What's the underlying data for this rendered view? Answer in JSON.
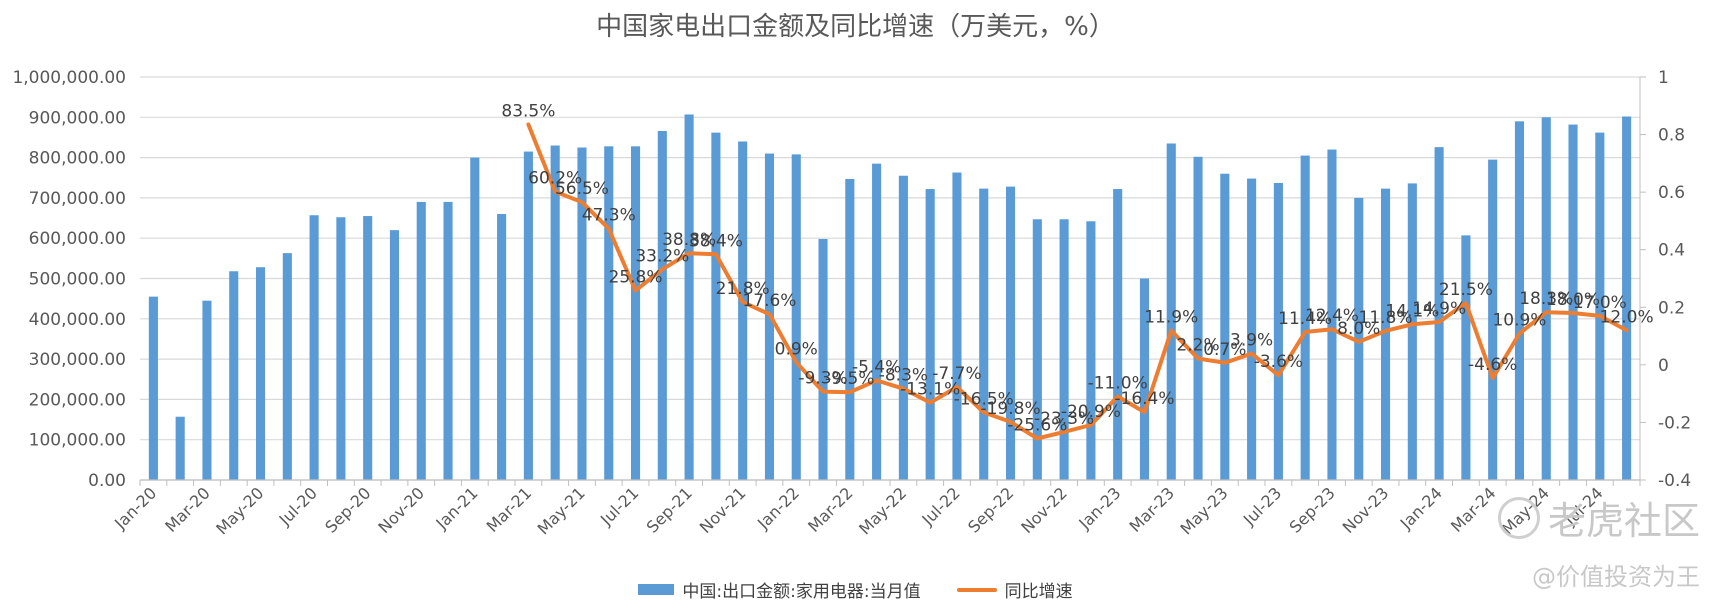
{
  "title": "中国家电出口金额及同比增速（万美元，%）",
  "watermark": {
    "logo_text": "老虎社区",
    "user": "@价值投资为王"
  },
  "colors": {
    "bar": "#5b9bd5",
    "line": "#ed7d31",
    "grid": "#d9d9d9",
    "text": "#595959"
  },
  "chart_data": {
    "type": "bar",
    "categories": [
      "Jan-20",
      "Feb-20",
      "Mar-20",
      "Apr-20",
      "May-20",
      "Jun-20",
      "Jul-20",
      "Aug-20",
      "Sep-20",
      "Oct-20",
      "Nov-20",
      "Dec-20",
      "Jan-21",
      "Feb-21",
      "Mar-21",
      "Apr-21",
      "May-21",
      "Jun-21",
      "Jul-21",
      "Aug-21",
      "Sep-21",
      "Oct-21",
      "Nov-21",
      "Dec-21",
      "Jan-22",
      "Feb-22",
      "Mar-22",
      "Apr-22",
      "May-22",
      "Jun-22",
      "Jul-22",
      "Aug-22",
      "Sep-22",
      "Oct-22",
      "Nov-22",
      "Dec-22",
      "Jan-23",
      "Feb-23",
      "Mar-23",
      "Apr-23",
      "May-23",
      "Jun-23",
      "Jul-23",
      "Aug-23",
      "Sep-23",
      "Oct-23",
      "Nov-23",
      "Dec-23",
      "Jan-24",
      "Feb-24",
      "Mar-24",
      "Apr-24",
      "May-24",
      "Jun-24",
      "Jul-24",
      "Aug-24"
    ],
    "x_tick_labels": [
      "Jan-20",
      "Mar-20",
      "May-20",
      "Jul-20",
      "Sep-20",
      "Nov-20",
      "Jan-21",
      "Mar-21",
      "May-21",
      "Jul-21",
      "Sep-21",
      "Nov-21",
      "Jan-22",
      "Mar-22",
      "May-22",
      "Jul-22",
      "Sep-22",
      "Nov-22",
      "Jan-23",
      "Mar-23",
      "May-23",
      "Jul-23",
      "Sep-23",
      "Nov-23",
      "Jan-24",
      "Mar-24",
      "May-24",
      "Jul-24"
    ],
    "series": [
      {
        "name": "中国:出口金额:家用电器:当月值",
        "type": "bar",
        "axis": "left",
        "values": [
          455000,
          157000,
          445000,
          518000,
          528000,
          563000,
          657000,
          652000,
          655000,
          620000,
          690000,
          690000,
          800000,
          660000,
          815000,
          830000,
          825000,
          828000,
          828000,
          866000,
          907000,
          862000,
          840000,
          810000,
          808000,
          598000,
          747000,
          785000,
          755000,
          722000,
          763000,
          723000,
          728000,
          647000,
          647000,
          642000,
          722000,
          500000,
          835000,
          802000,
          760000,
          748000,
          737000,
          805000,
          820000,
          700000,
          723000,
          736000,
          826000,
          607000,
          795000,
          890000,
          900000,
          882000,
          862000,
          902000
        ]
      },
      {
        "name": "同比增速",
        "type": "line",
        "axis": "right",
        "values": [
          null,
          null,
          null,
          null,
          null,
          null,
          null,
          null,
          null,
          null,
          null,
          null,
          null,
          null,
          0.835,
          0.602,
          0.565,
          0.473,
          0.258,
          0.332,
          0.388,
          0.384,
          0.218,
          0.176,
          0.009,
          -0.093,
          -0.095,
          -0.054,
          -0.083,
          -0.131,
          -0.077,
          -0.165,
          -0.198,
          -0.256,
          -0.233,
          -0.209,
          -0.11,
          -0.164,
          0.119,
          0.022,
          0.007,
          0.039,
          -0.036,
          0.114,
          0.124,
          0.08,
          0.118,
          0.141,
          0.149,
          0.215,
          -0.046,
          0.109,
          0.183,
          0.18,
          0.17,
          0.12
        ],
        "labels": [
          null,
          null,
          null,
          null,
          null,
          null,
          null,
          null,
          null,
          null,
          null,
          null,
          null,
          null,
          "83.5%",
          "60.2%",
          "56.5%",
          "47.3%",
          "25.8%",
          "33.2%",
          "38.8%",
          "38.4%",
          "21.8%",
          "17.6%",
          "0.9%",
          "-9.3%",
          "-9.5%",
          "-5.4%",
          "-8.3%",
          "-13.1%",
          "-7.7%",
          "-16.5%",
          "-19.8%",
          "-25.6%",
          "-23.3%",
          "-20.9%",
          "-11.0%",
          "-16.4%",
          "11.9%",
          "2.2%",
          "0.7%",
          "3.9%",
          "-3.6%",
          "11.4%",
          "12.4%",
          "8.0%",
          "11.8%",
          "14.1%",
          "14.9%",
          "21.5%",
          "-4.6%",
          "10.9%",
          "18.3%",
          "18.0%",
          "17.0%",
          "12.0%"
        ]
      }
    ],
    "y_left": {
      "min": 0,
      "max": 1000000,
      "ticks": [
        "0.00",
        "100,000.00",
        "200,000.00",
        "300,000.00",
        "400,000.00",
        "500,000.00",
        "600,000.00",
        "700,000.00",
        "800,000.00",
        "900,000.00",
        "1,000,000.00"
      ]
    },
    "y_right": {
      "min": -0.4,
      "max": 1.0,
      "ticks": [
        "-0.4",
        "-0.2",
        "0",
        "0.2",
        "0.4",
        "0.6",
        "0.8",
        "1"
      ]
    },
    "grid": true,
    "legend": "bottom"
  }
}
